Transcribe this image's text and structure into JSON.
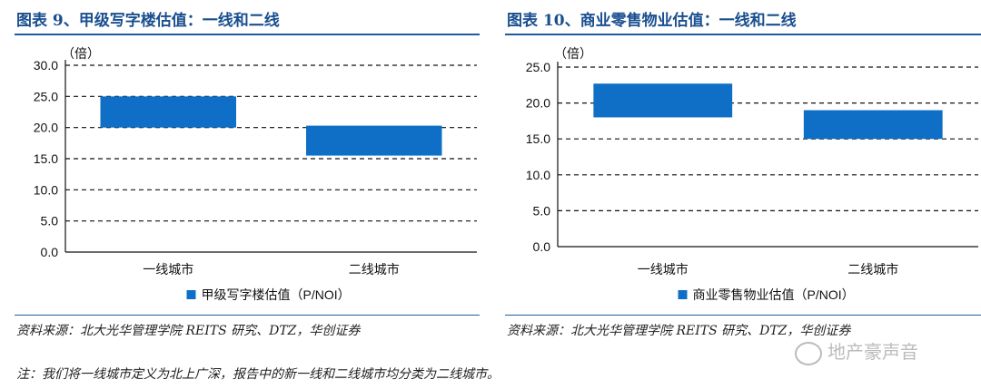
{
  "panels": [
    {
      "title": "图表 9、甲级写字楼估值：一线和二线",
      "unit": "（倍）",
      "source": "资料来源：北大光华管理学院 REITS 研究、DTZ，华创证券",
      "chart_data": {
        "type": "bar",
        "subtype": "floating-range",
        "categories": [
          "一线城市",
          "二线城市"
        ],
        "series": [
          {
            "name": "甲级写字楼估值（P/NOI）",
            "low": [
              20.0,
              15.5
            ],
            "high": [
              25.0,
              20.3
            ]
          }
        ],
        "ylim": [
          0,
          30
        ],
        "yticks": [
          "0.0",
          "5.0",
          "10.0",
          "15.0",
          "20.0",
          "25.0",
          "30.0"
        ],
        "ylabel": "（倍）",
        "grid": true,
        "legend": "bottom",
        "color": "#0f6fc6"
      }
    },
    {
      "title": "图表 10、商业零售物业估值：一线和二线",
      "unit": "（倍）",
      "source": "资料来源：北大光华管理学院 REITS 研究、DTZ，华创证券",
      "chart_data": {
        "type": "bar",
        "subtype": "floating-range",
        "categories": [
          "一线城市",
          "二线城市"
        ],
        "series": [
          {
            "name": "商业零售物业估值（P/NOI）",
            "low": [
              18.0,
              15.0
            ],
            "high": [
              22.7,
              19.0
            ]
          }
        ],
        "ylim": [
          0,
          25
        ],
        "yticks": [
          "0.0",
          "5.0",
          "10.0",
          "15.0",
          "20.0",
          "25.0"
        ],
        "ylabel": "（倍）",
        "grid": true,
        "legend": "bottom",
        "color": "#0f6fc6"
      }
    }
  ],
  "note": "注：我们将一线城市定义为北上广深，报告中的新一线和二线城市均分类为二线城市。",
  "watermark": "地产豪声音"
}
